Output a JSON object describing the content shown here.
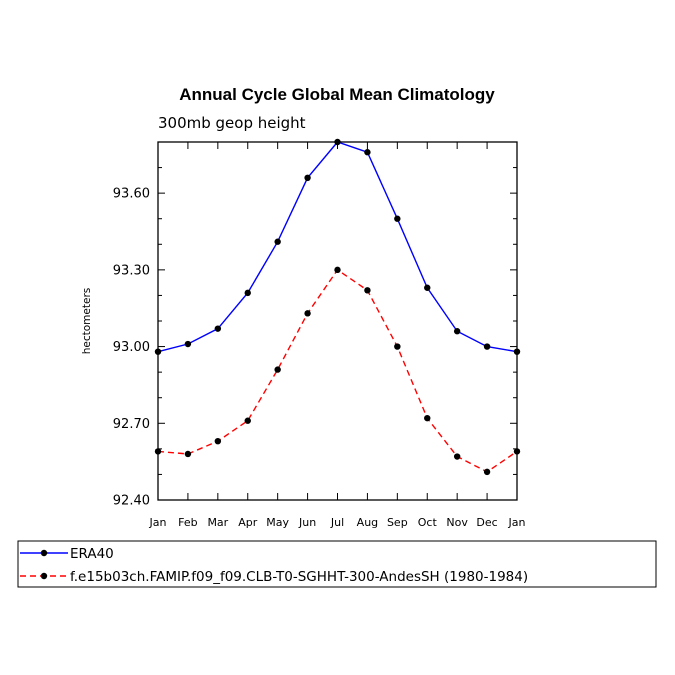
{
  "chart_data": {
    "type": "line",
    "title": "Annual Cycle Global Mean Climatology",
    "subtitle": "300mb geop height",
    "xlabel": "",
    "ylabel": "hectometers",
    "categories": [
      "Jan",
      "Feb",
      "Mar",
      "Apr",
      "May",
      "Jun",
      "Jul",
      "Aug",
      "Sep",
      "Oct",
      "Nov",
      "Dec",
      "Jan"
    ],
    "ylim": [
      92.4,
      93.8
    ],
    "yticks": [
      "92.40",
      "92.70",
      "93.00",
      "93.30",
      "93.60"
    ],
    "series": [
      {
        "name": "ERA40",
        "color": "#0000ff",
        "dash": "solid",
        "values": [
          92.98,
          93.01,
          93.07,
          93.21,
          93.41,
          93.66,
          93.8,
          93.76,
          93.5,
          93.23,
          93.06,
          93.0,
          92.98
        ]
      },
      {
        "name": "f.e15b03ch.FAMIP.f09_f09.CLB-T0-SGHHT-300-AndesSH (1980-1984)",
        "color": "#ff0000",
        "dash": "dashed",
        "values": [
          92.59,
          92.58,
          92.63,
          92.71,
          92.91,
          93.13,
          93.3,
          93.22,
          93.0,
          92.72,
          92.57,
          92.51,
          92.59
        ]
      }
    ],
    "grid": false,
    "legend": "bottom"
  }
}
